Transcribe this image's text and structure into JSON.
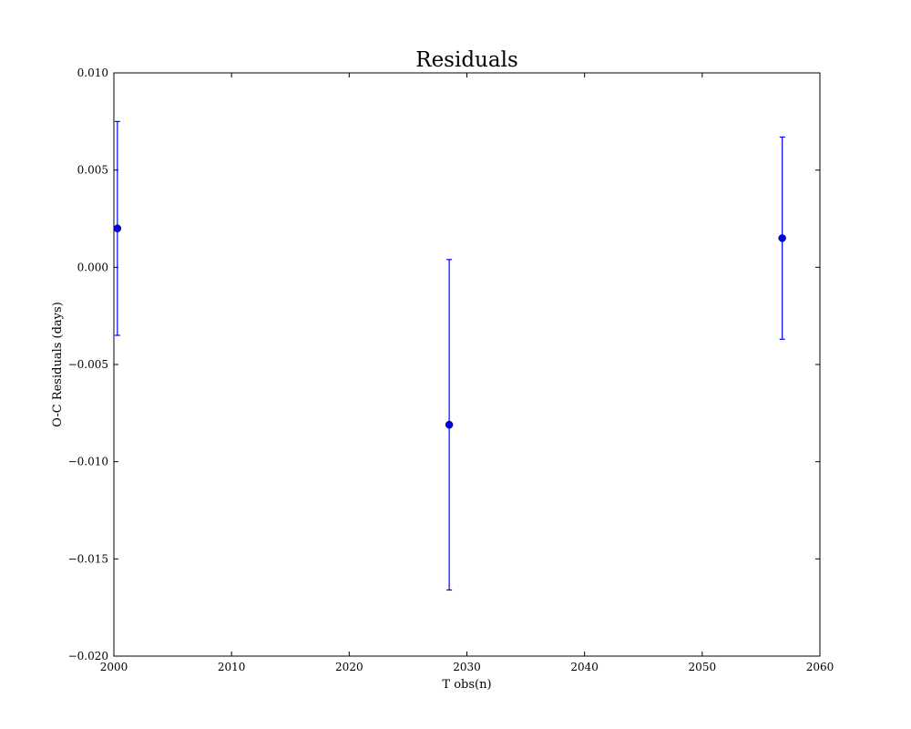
{
  "chart_data": {
    "type": "scatter",
    "title": "Residuals",
    "xlabel": "T obs(n)",
    "ylabel": "O-C Residuals (days)",
    "xlim": [
      2000,
      2060
    ],
    "ylim": [
      -0.02,
      0.01
    ],
    "x_ticks": [
      2000,
      2010,
      2020,
      2030,
      2040,
      2050,
      2060
    ],
    "x_tick_labels": [
      "2000",
      "2010",
      "2020",
      "2030",
      "2040",
      "2050",
      "2060"
    ],
    "y_ticks": [
      -0.02,
      -0.015,
      -0.01,
      -0.005,
      0.0,
      0.005,
      0.01
    ],
    "y_tick_labels": [
      "−0.020",
      "−0.015",
      "−0.010",
      "−0.005",
      "0.000",
      "0.005",
      "0.010"
    ],
    "grid": false,
    "series": [
      {
        "color": "#0000ff",
        "marker": "circle",
        "points": [
          {
            "x": 2000.3,
            "y": 0.002,
            "yerr": 0.0055
          },
          {
            "x": 2028.5,
            "y": -0.0081,
            "yerr": 0.0085
          },
          {
            "x": 2056.8,
            "y": 0.0015,
            "yerr": 0.0052
          }
        ]
      }
    ]
  }
}
